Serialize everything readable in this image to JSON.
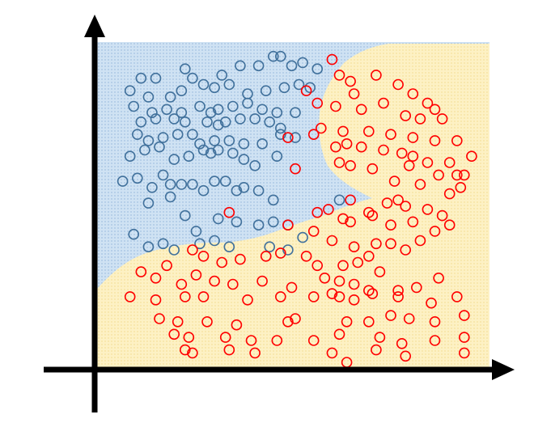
{
  "colors": {
    "background": "#ffffff",
    "class_a_region": "#cfe2f3",
    "class_a_dots": "#8fb3d9",
    "class_b_region": "#fdf1c4",
    "class_b_dots": "#f1d98a",
    "class_a_points": "#41719c",
    "class_b_points": "#ff0000",
    "axes": "#000000"
  },
  "chart_data": {
    "type": "scatter",
    "title": "",
    "xlabel": "",
    "ylabel": "",
    "grid": false,
    "legend": "none",
    "xlim": [
      0,
      100
    ],
    "ylim": [
      0,
      100
    ],
    "regions": [
      {
        "class": "A",
        "fill_color": "#cfe2f3",
        "pattern": "dots"
      },
      {
        "class": "B",
        "fill_color": "#fdf1c4",
        "pattern": "dots"
      }
    ],
    "series": [
      {
        "class": "A",
        "marker": "open-circle",
        "color": "#41719c",
        "points": [
          [
            8,
            91
          ],
          [
            12,
            91
          ],
          [
            20,
            94
          ],
          [
            22,
            91
          ],
          [
            30,
            92
          ],
          [
            35,
            95
          ],
          [
            40,
            95
          ],
          [
            44,
            98
          ],
          [
            46,
            98
          ],
          [
            49,
            95
          ],
          [
            52,
            96
          ],
          [
            56,
            94
          ],
          [
            5,
            87
          ],
          [
            10,
            85
          ],
          [
            16,
            85
          ],
          [
            19,
            87
          ],
          [
            25,
            89
          ],
          [
            28,
            88
          ],
          [
            32,
            89
          ],
          [
            37,
            86
          ],
          [
            42,
            87
          ],
          [
            47,
            88
          ],
          [
            51,
            89
          ],
          [
            54,
            88
          ],
          [
            6,
            82
          ],
          [
            11,
            80
          ],
          [
            15,
            81
          ],
          [
            19,
            80
          ],
          [
            24,
            82
          ],
          [
            27,
            80
          ],
          [
            29,
            81
          ],
          [
            33,
            82
          ],
          [
            37,
            83
          ],
          [
            41,
            81
          ],
          [
            45,
            80
          ],
          [
            50,
            80
          ],
          [
            8,
            77
          ],
          [
            12,
            78
          ],
          [
            17,
            78
          ],
          [
            20,
            77
          ],
          [
            26,
            77
          ],
          [
            29,
            76
          ],
          [
            31,
            77
          ],
          [
            35,
            78
          ],
          [
            39,
            78
          ],
          [
            43,
            77
          ],
          [
            46,
            75
          ],
          [
            7,
            73
          ],
          [
            10,
            71
          ],
          [
            14,
            72
          ],
          [
            18,
            73
          ],
          [
            22,
            73
          ],
          [
            24,
            70
          ],
          [
            28,
            71
          ],
          [
            32,
            71
          ],
          [
            36,
            70
          ],
          [
            41,
            70
          ],
          [
            46,
            73
          ],
          [
            50,
            72
          ],
          [
            5,
            66
          ],
          [
            9,
            68
          ],
          [
            13,
            69
          ],
          [
            17,
            65
          ],
          [
            21,
            66
          ],
          [
            25,
            68
          ],
          [
            27,
            67
          ],
          [
            29,
            68
          ],
          [
            33,
            67
          ],
          [
            36,
            65
          ],
          [
            39,
            63
          ],
          [
            45,
            66
          ],
          [
            3,
            58
          ],
          [
            7,
            59
          ],
          [
            11,
            56
          ],
          [
            14,
            60
          ],
          [
            16,
            57
          ],
          [
            19,
            57
          ],
          [
            22,
            57
          ],
          [
            25,
            55
          ],
          [
            28,
            58
          ],
          [
            31,
            58
          ],
          [
            34,
            55
          ],
          [
            36,
            56
          ],
          [
            40,
            55
          ],
          [
            44,
            52
          ],
          [
            10,
            51
          ],
          [
            16,
            53
          ],
          [
            20,
            47
          ],
          [
            23,
            42
          ],
          [
            29,
            46
          ],
          [
            34,
            45
          ],
          [
            40,
            44
          ],
          [
            44,
            45
          ],
          [
            48,
            44
          ],
          [
            62,
            52
          ],
          [
            6,
            41
          ],
          [
            10,
            37
          ],
          [
            14,
            38
          ],
          [
            17,
            36
          ],
          [
            24,
            38
          ],
          [
            28,
            39
          ],
          [
            32,
            37
          ],
          [
            43,
            37
          ],
          [
            48,
            36
          ],
          [
            52,
            40
          ]
        ]
      },
      {
        "class": "B",
        "marker": "open-circle",
        "color": "#ff0000",
        "points": [
          [
            60,
            97
          ],
          [
            62,
            92
          ],
          [
            65,
            90
          ],
          [
            66,
            86
          ],
          [
            72,
            92
          ],
          [
            78,
            89
          ],
          [
            82,
            86
          ],
          [
            86,
            83
          ],
          [
            88,
            81
          ],
          [
            53,
            87
          ],
          [
            61,
            82
          ],
          [
            68,
            81
          ],
          [
            74,
            83
          ],
          [
            80,
            79
          ],
          [
            84,
            78
          ],
          [
            90,
            78
          ],
          [
            57,
            75
          ],
          [
            63,
            74
          ],
          [
            70,
            74
          ],
          [
            76,
            73
          ],
          [
            82,
            72
          ],
          [
            88,
            71
          ],
          [
            94,
            71
          ],
          [
            61,
            69
          ],
          [
            64,
            70
          ],
          [
            68,
            69
          ],
          [
            74,
            68
          ],
          [
            79,
            67
          ],
          [
            82,
            66
          ],
          [
            86,
            64
          ],
          [
            92,
            64
          ],
          [
            98,
            66
          ],
          [
            62,
            64
          ],
          [
            65,
            63
          ],
          [
            71,
            62
          ],
          [
            81,
            63
          ],
          [
            89,
            60
          ],
          [
            94,
            60
          ],
          [
            96,
            60
          ],
          [
            50,
            62
          ],
          [
            48,
            72
          ],
          [
            55,
            73
          ],
          [
            56,
            83
          ],
          [
            77,
            58
          ],
          [
            84,
            57
          ],
          [
            92,
            54
          ],
          [
            95,
            56
          ],
          [
            65,
            52
          ],
          [
            70,
            48
          ],
          [
            75,
            51
          ],
          [
            78,
            52
          ],
          [
            80,
            50
          ],
          [
            86,
            49
          ],
          [
            90,
            47
          ],
          [
            56,
            48
          ],
          [
            59,
            49
          ],
          [
            63,
            46
          ],
          [
            65,
            45
          ],
          [
            71,
            47
          ],
          [
            76,
            44
          ],
          [
            82,
            45
          ],
          [
            88,
            42
          ],
          [
            92,
            44
          ],
          [
            32,
            48
          ],
          [
            48,
            44
          ],
          [
            55,
            42
          ],
          [
            60,
            39
          ],
          [
            66,
            37
          ],
          [
            70,
            34
          ],
          [
            72,
            38
          ],
          [
            76,
            38
          ],
          [
            80,
            36
          ],
          [
            84,
            39
          ],
          [
            22,
            36
          ],
          [
            25,
            34
          ],
          [
            30,
            32
          ],
          [
            35,
            33
          ],
          [
            42,
            34
          ],
          [
            46,
            35
          ],
          [
            53,
            34
          ],
          [
            56,
            31
          ],
          [
            63,
            31
          ],
          [
            67,
            32
          ],
          [
            73,
            29
          ],
          [
            8,
            29
          ],
          [
            12,
            27
          ],
          [
            15,
            31
          ],
          [
            19,
            25
          ],
          [
            23,
            28
          ],
          [
            28,
            26
          ],
          [
            33,
            25
          ],
          [
            41,
            26
          ],
          [
            49,
            24
          ],
          [
            58,
            27
          ],
          [
            62,
            26
          ],
          [
            66,
            25
          ],
          [
            70,
            23
          ],
          [
            78,
            21
          ],
          [
            83,
            24
          ],
          [
            89,
            27
          ],
          [
            5,
            21
          ],
          [
            12,
            20
          ],
          [
            20,
            21
          ],
          [
            25,
            21
          ],
          [
            37,
            20
          ],
          [
            46,
            21
          ],
          [
            55,
            21
          ],
          [
            60,
            22
          ],
          [
            62,
            21
          ],
          [
            66,
            20
          ],
          [
            71,
            22
          ],
          [
            78,
            23
          ],
          [
            87,
            19
          ],
          [
            94,
            21
          ],
          [
            13,
            14
          ],
          [
            18,
            13
          ],
          [
            26,
            13
          ],
          [
            34,
            12
          ],
          [
            48,
            13
          ],
          [
            50,
            14
          ],
          [
            64,
            13
          ],
          [
            70,
            13
          ],
          [
            76,
            15
          ],
          [
            81,
            14
          ],
          [
            88,
            13
          ],
          [
            96,
            15
          ],
          [
            17,
            9
          ],
          [
            21,
            8
          ],
          [
            31,
            8
          ],
          [
            38,
            7
          ],
          [
            45,
            7
          ],
          [
            55,
            7
          ],
          [
            62,
            9
          ],
          [
            73,
            8
          ],
          [
            79,
            6
          ],
          [
            88,
            7
          ],
          [
            96,
            8
          ],
          [
            20,
            4
          ],
          [
            22,
            3
          ],
          [
            32,
            4
          ],
          [
            39,
            3
          ],
          [
            60,
            3
          ],
          [
            64,
            0
          ],
          [
            72,
            4
          ],
          [
            80,
            2
          ],
          [
            96,
            3
          ]
        ]
      }
    ]
  }
}
